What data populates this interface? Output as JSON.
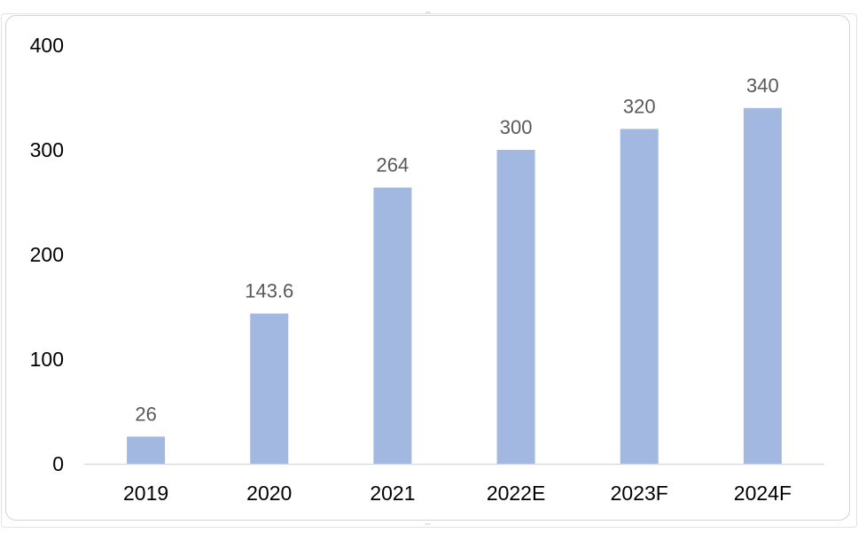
{
  "chart_data": {
    "type": "bar",
    "title": "",
    "xlabel": "",
    "ylabel": "",
    "categories": [
      "2019",
      "2020",
      "2021",
      "2022E",
      "2023F",
      "2024F"
    ],
    "values": [
      26,
      143.6,
      264,
      300,
      320,
      340
    ],
    "data_labels": [
      "26",
      "143.6",
      "264",
      "300",
      "320",
      "340"
    ],
    "ylim": [
      0,
      400
    ],
    "yticks": [
      "0",
      "100",
      "200",
      "300",
      "400"
    ],
    "grid": false,
    "legend": "none",
    "bar_color": "#a3b8e0",
    "axis_color": "#d9d9d9",
    "label_color": "#595959",
    "tick_color": "#000000"
  }
}
